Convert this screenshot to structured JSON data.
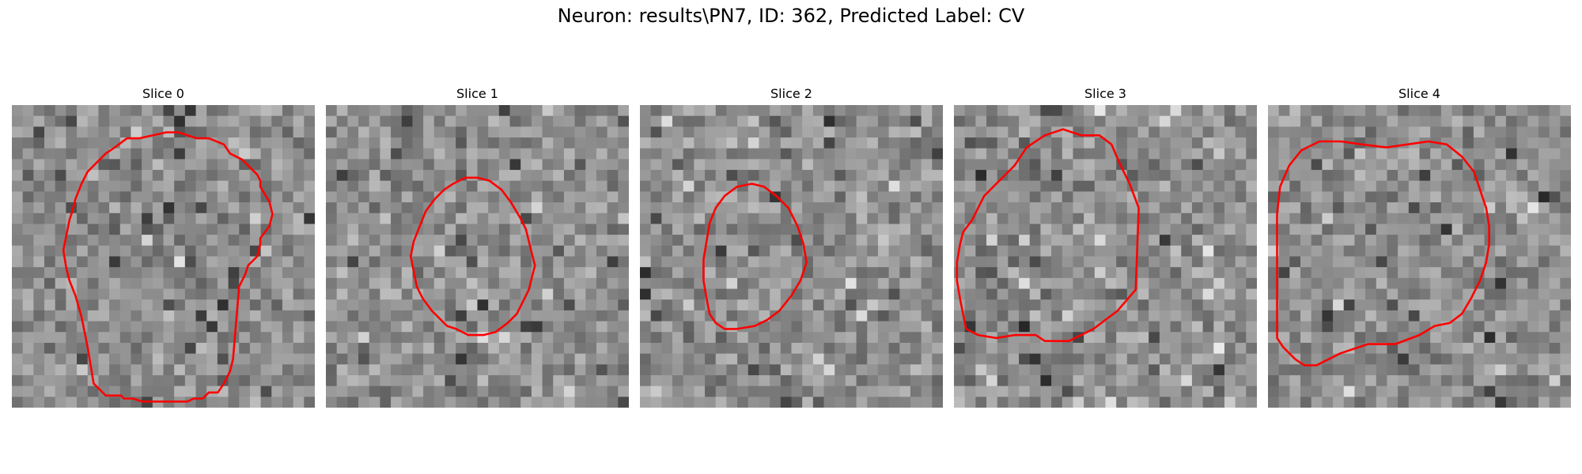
{
  "figure": {
    "title": "Neuron: results\\PN7, ID: 362, Predicted Label: CV",
    "contour_color": "#ff0000"
  },
  "panels": [
    {
      "title": "Slice 0",
      "contour": [
        [
          0.27,
          0.92
        ],
        [
          0.31,
          0.96
        ],
        [
          0.36,
          0.96
        ],
        [
          0.37,
          0.97
        ],
        [
          0.4,
          0.97
        ],
        [
          0.43,
          0.98
        ],
        [
          0.58,
          0.98
        ],
        [
          0.6,
          0.97
        ],
        [
          0.63,
          0.97
        ],
        [
          0.65,
          0.95
        ],
        [
          0.68,
          0.95
        ],
        [
          0.7,
          0.92
        ],
        [
          0.72,
          0.88
        ],
        [
          0.73,
          0.84
        ],
        [
          0.75,
          0.6
        ],
        [
          0.77,
          0.56
        ],
        [
          0.78,
          0.53
        ],
        [
          0.81,
          0.5
        ],
        [
          0.82,
          0.46
        ],
        [
          0.82,
          0.44
        ],
        [
          0.85,
          0.4
        ],
        [
          0.86,
          0.36
        ],
        [
          0.85,
          0.32
        ],
        [
          0.82,
          0.27
        ],
        [
          0.82,
          0.25
        ],
        [
          0.81,
          0.23
        ],
        [
          0.78,
          0.2
        ],
        [
          0.76,
          0.18
        ],
        [
          0.72,
          0.16
        ],
        [
          0.7,
          0.13
        ],
        [
          0.65,
          0.11
        ],
        [
          0.61,
          0.11
        ],
        [
          0.55,
          0.09
        ],
        [
          0.51,
          0.09
        ],
        [
          0.42,
          0.11
        ],
        [
          0.38,
          0.11
        ],
        [
          0.34,
          0.14
        ],
        [
          0.31,
          0.16
        ],
        [
          0.28,
          0.19
        ],
        [
          0.25,
          0.22
        ],
        [
          0.23,
          0.26
        ],
        [
          0.21,
          0.31
        ],
        [
          0.2,
          0.35
        ],
        [
          0.19,
          0.38
        ],
        [
          0.18,
          0.43
        ],
        [
          0.17,
          0.48
        ],
        [
          0.18,
          0.54
        ],
        [
          0.19,
          0.58
        ],
        [
          0.21,
          0.63
        ],
        [
          0.23,
          0.7
        ],
        [
          0.24,
          0.75
        ],
        [
          0.25,
          0.8
        ],
        [
          0.26,
          0.86
        ]
      ]
    },
    {
      "title": "Slice 1",
      "contour": [
        [
          0.4,
          0.73
        ],
        [
          0.43,
          0.74
        ],
        [
          0.47,
          0.76
        ],
        [
          0.52,
          0.76
        ],
        [
          0.56,
          0.75
        ],
        [
          0.6,
          0.72
        ],
        [
          0.63,
          0.69
        ],
        [
          0.65,
          0.65
        ],
        [
          0.67,
          0.61
        ],
        [
          0.68,
          0.57
        ],
        [
          0.69,
          0.53
        ],
        [
          0.68,
          0.49
        ],
        [
          0.67,
          0.45
        ],
        [
          0.66,
          0.41
        ],
        [
          0.64,
          0.37
        ],
        [
          0.61,
          0.32
        ],
        [
          0.58,
          0.28
        ],
        [
          0.54,
          0.25
        ],
        [
          0.5,
          0.24
        ],
        [
          0.46,
          0.24
        ],
        [
          0.42,
          0.26
        ],
        [
          0.39,
          0.28
        ],
        [
          0.36,
          0.31
        ],
        [
          0.33,
          0.35
        ],
        [
          0.31,
          0.4
        ],
        [
          0.29,
          0.45
        ],
        [
          0.28,
          0.5
        ],
        [
          0.29,
          0.55
        ],
        [
          0.3,
          0.6
        ],
        [
          0.32,
          0.64
        ],
        [
          0.35,
          0.68
        ]
      ]
    },
    {
      "title": "Slice 2",
      "contour": [
        [
          0.25,
          0.72
        ],
        [
          0.28,
          0.74
        ],
        [
          0.32,
          0.74
        ],
        [
          0.38,
          0.73
        ],
        [
          0.42,
          0.71
        ],
        [
          0.46,
          0.68
        ],
        [
          0.5,
          0.63
        ],
        [
          0.53,
          0.58
        ],
        [
          0.55,
          0.52
        ],
        [
          0.54,
          0.46
        ],
        [
          0.52,
          0.4
        ],
        [
          0.49,
          0.34
        ],
        [
          0.45,
          0.3
        ],
        [
          0.41,
          0.27
        ],
        [
          0.37,
          0.26
        ],
        [
          0.32,
          0.27
        ],
        [
          0.28,
          0.3
        ],
        [
          0.25,
          0.34
        ],
        [
          0.23,
          0.39
        ],
        [
          0.22,
          0.45
        ],
        [
          0.21,
          0.51
        ],
        [
          0.21,
          0.58
        ],
        [
          0.22,
          0.64
        ],
        [
          0.23,
          0.69
        ]
      ]
    },
    {
      "title": "Slice 3",
      "contour": [
        [
          0.04,
          0.74
        ],
        [
          0.08,
          0.76
        ],
        [
          0.14,
          0.77
        ],
        [
          0.2,
          0.76
        ],
        [
          0.27,
          0.76
        ],
        [
          0.3,
          0.78
        ],
        [
          0.38,
          0.78
        ],
        [
          0.46,
          0.74
        ],
        [
          0.54,
          0.68
        ],
        [
          0.6,
          0.61
        ],
        [
          0.61,
          0.34
        ],
        [
          0.58,
          0.26
        ],
        [
          0.55,
          0.2
        ],
        [
          0.52,
          0.13
        ],
        [
          0.48,
          0.1
        ],
        [
          0.42,
          0.1
        ],
        [
          0.36,
          0.08
        ],
        [
          0.3,
          0.1
        ],
        [
          0.24,
          0.14
        ],
        [
          0.2,
          0.2
        ],
        [
          0.14,
          0.26
        ],
        [
          0.1,
          0.3
        ],
        [
          0.08,
          0.34
        ],
        [
          0.06,
          0.38
        ],
        [
          0.03,
          0.42
        ],
        [
          0.02,
          0.46
        ],
        [
          0.01,
          0.52
        ],
        [
          0.01,
          0.58
        ],
        [
          0.02,
          0.64
        ],
        [
          0.03,
          0.69
        ]
      ]
    },
    {
      "title": "Slice 4",
      "contour": [
        [
          0.03,
          0.77
        ],
        [
          0.05,
          0.8
        ],
        [
          0.09,
          0.84
        ],
        [
          0.12,
          0.86
        ],
        [
          0.16,
          0.86
        ],
        [
          0.24,
          0.82
        ],
        [
          0.33,
          0.79
        ],
        [
          0.42,
          0.79
        ],
        [
          0.5,
          0.76
        ],
        [
          0.55,
          0.73
        ],
        [
          0.6,
          0.72
        ],
        [
          0.64,
          0.69
        ],
        [
          0.67,
          0.64
        ],
        [
          0.7,
          0.58
        ],
        [
          0.72,
          0.52
        ],
        [
          0.73,
          0.46
        ],
        [
          0.73,
          0.4
        ],
        [
          0.72,
          0.34
        ],
        [
          0.7,
          0.28
        ],
        [
          0.68,
          0.22
        ],
        [
          0.64,
          0.17
        ],
        [
          0.59,
          0.13
        ],
        [
          0.53,
          0.12
        ],
        [
          0.46,
          0.13
        ],
        [
          0.39,
          0.14
        ],
        [
          0.31,
          0.13
        ],
        [
          0.24,
          0.12
        ],
        [
          0.17,
          0.12
        ],
        [
          0.11,
          0.15
        ],
        [
          0.07,
          0.2
        ],
        [
          0.04,
          0.27
        ],
        [
          0.03,
          0.36
        ],
        [
          0.03,
          0.46
        ],
        [
          0.03,
          0.56
        ],
        [
          0.03,
          0.65
        ]
      ]
    }
  ]
}
